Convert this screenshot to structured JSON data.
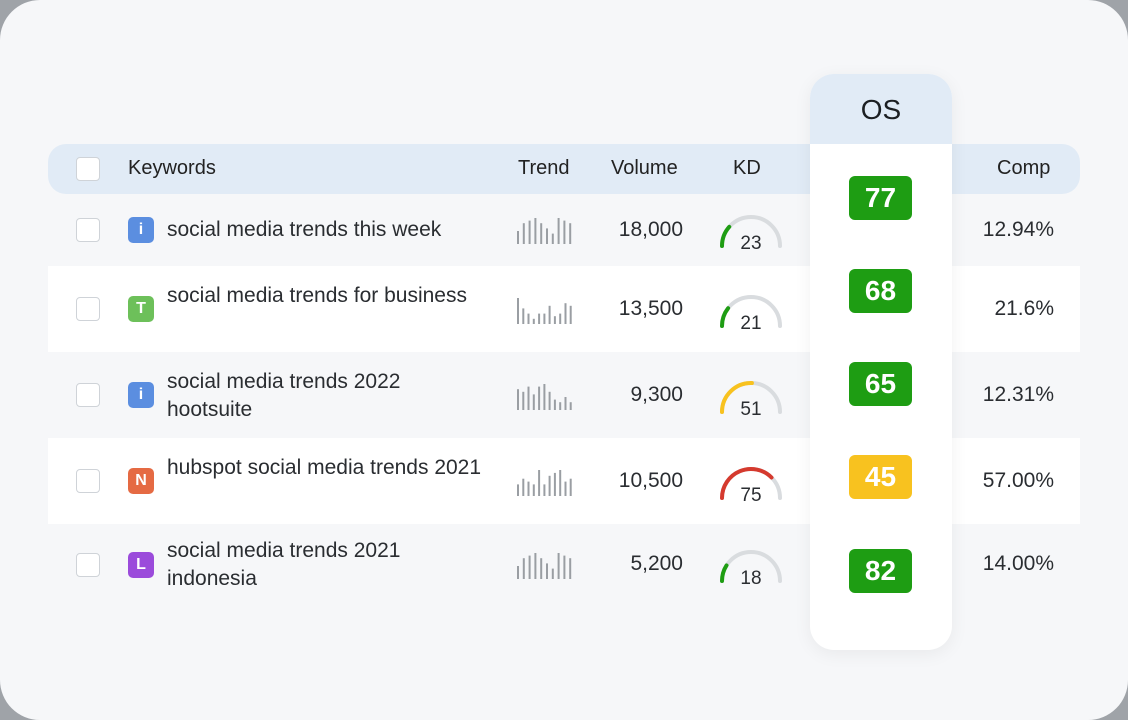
{
  "colors": {
    "header_bg": "#e1ebf6",
    "green": "#1e9d13",
    "yellow": "#f8c21f",
    "red": "#d53a2e",
    "badge_i": "#5b8ee0",
    "badge_t": "#6dc05a",
    "badge_n": "#e56a43",
    "badge_l": "#9b4bdb"
  },
  "table": {
    "headers": {
      "keywords": "Keywords",
      "trend": "Trend",
      "volume": "Volume",
      "kd": "KD",
      "os": "OS",
      "comp": "Comp"
    },
    "rows": [
      {
        "intent": "i",
        "keyword": "social media trends this week",
        "trend": [
          5,
          8,
          9,
          10,
          8,
          6,
          4,
          10,
          9,
          8
        ],
        "volume": "18,000",
        "kd": "23",
        "kd_value": 23,
        "kd_color": "green",
        "os": "77",
        "os_color": "green",
        "comp": "12.94%"
      },
      {
        "intent": "T",
        "keyword": "social media trends for business",
        "trend": [
          10,
          6,
          4,
          2,
          4,
          4,
          7,
          3,
          4,
          8,
          7
        ],
        "volume": "13,500",
        "kd": "21",
        "kd_value": 21,
        "kd_color": "green",
        "os": "68",
        "os_color": "green",
        "comp": "21.6%"
      },
      {
        "intent": "i",
        "keyword": "social media trends 2022 hootsuite",
        "trend": [
          8,
          7,
          9,
          6,
          9,
          10,
          7,
          4,
          3,
          5,
          3
        ],
        "volume": "9,300",
        "kd": "51",
        "kd_value": 51,
        "kd_color": "yellow",
        "os": "65",
        "os_color": "green",
        "comp": "12.31%"
      },
      {
        "intent": "N",
        "keyword": "hubspot social media trends 2021",
        "trend": [
          4,
          6,
          5,
          4,
          9,
          4,
          7,
          8,
          9,
          5,
          6
        ],
        "volume": "10,500",
        "kd": "75",
        "kd_value": 75,
        "kd_color": "red",
        "os": "45",
        "os_color": "yellow",
        "comp": "57.00%"
      },
      {
        "intent": "L",
        "keyword": "social media trends 2021 indonesia",
        "trend": [
          5,
          8,
          9,
          10,
          8,
          6,
          4,
          10,
          9,
          8
        ],
        "volume": "5,200",
        "kd": "18",
        "kd_value": 18,
        "kd_color": "green",
        "os": "82",
        "os_color": "green",
        "comp": "14.00%"
      }
    ]
  }
}
